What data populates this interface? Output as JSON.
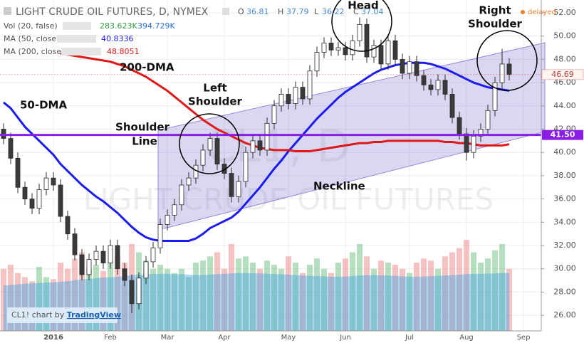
{
  "chart_data": {
    "type": "candlestick",
    "title": "LIGHT CRUDE OIL FUTURES, D, NYMEX",
    "status": "delayed",
    "readout": [
      {
        "label": "O",
        "value": 36.81
      },
      {
        "label": "H",
        "value": 37.79
      },
      {
        "label": "L",
        "value": 36.22
      },
      {
        "label": "C",
        "value": 37.04
      }
    ],
    "indicators": [
      {
        "name": "Vol (20, false)",
        "values": [
          283623,
          394729
        ],
        "value_labels": [
          "283.623K",
          "394.729K"
        ],
        "colors": [
          "#2e9e3e",
          "#2a6fd6"
        ]
      },
      {
        "name": "MA (50, close)",
        "value": 40.8336,
        "color": "#1c1cf0"
      },
      {
        "name": "MA (200, close)",
        "value": 48.8051,
        "color": "#e01818"
      }
    ],
    "watermark": [
      "CL1, D",
      "LIGHT CRUDE OIL FUTURES"
    ],
    "source": "CL1! chart by ",
    "source_link": "TradingView",
    "annotations": [
      {
        "lines": [
          "Head"
        ]
      },
      {
        "lines": [
          "Right",
          "Shoulder"
        ]
      },
      {
        "lines": [
          "Left",
          "Shoulder"
        ]
      },
      {
        "lines": [
          "200-DMA"
        ]
      },
      {
        "lines": [
          "50-DMA"
        ]
      },
      {
        "lines": [
          "Shoulder",
          "Line"
        ]
      },
      {
        "lines": [
          "Neckline"
        ]
      }
    ],
    "categories": [
      null,
      null,
      null,
      null,
      null,
      null,
      null,
      "2016",
      null,
      null,
      null,
      null,
      null,
      null,
      null,
      "Feb",
      null,
      null,
      null,
      null,
      null,
      null,
      null,
      "Mar",
      null,
      null,
      null,
      null,
      null,
      null,
      null,
      "Apr",
      null,
      null,
      null,
      null,
      null,
      null,
      null,
      null,
      "May",
      null,
      null,
      null,
      null,
      null,
      null,
      null,
      "Jun",
      null,
      null,
      null,
      null,
      null,
      null,
      null,
      null,
      "Jul",
      null,
      null,
      null,
      null,
      null,
      null,
      null,
      "Aug",
      null,
      null,
      null,
      null,
      null,
      null,
      null,
      "Sep"
    ],
    "ohlc": {
      "up_color": "#ffffff",
      "down_color": "#3a3a3a",
      "stroke": "#2b2b2b",
      "open": [
        42.0,
        41.2,
        39.5,
        37.0,
        36.0,
        35.2,
        36.8,
        37.8,
        37.2,
        34.5,
        33.0,
        31.2,
        29.5,
        30.8,
        31.5,
        30.5,
        32.0,
        30.0,
        29.0,
        27.0,
        29.2,
        30.6,
        31.8,
        33.8,
        34.6,
        35.5,
        37.2,
        37.8,
        38.9,
        40.2,
        41.2,
        39.0,
        38.2,
        36.2,
        37.5,
        40.0,
        41.0,
        40.2,
        42.5,
        44.0,
        45.0,
        44.2,
        45.6,
        44.6,
        47.0,
        48.6,
        49.4,
        48.8,
        49.0,
        48.4,
        49.6,
        51.0,
        48.2,
        49.2,
        47.6,
        49.6,
        48.0,
        46.8,
        47.8,
        46.6,
        45.8,
        45.4,
        46.2,
        45.0,
        43.0,
        41.6,
        40.0,
        41.4,
        42.0,
        43.6,
        46.0,
        47.6,
        null,
        null
      ],
      "high": [
        42.5,
        41.7,
        40.0,
        37.5,
        36.5,
        37.3,
        38.3,
        38.3,
        37.7,
        35.0,
        33.5,
        31.7,
        31.3,
        32.0,
        32.0,
        32.5,
        32.5,
        30.5,
        29.5,
        29.7,
        31.1,
        32.3,
        34.3,
        35.1,
        36.0,
        37.7,
        38.3,
        39.4,
        40.7,
        41.7,
        41.7,
        39.5,
        38.7,
        38.0,
        40.5,
        41.5,
        41.5,
        43.0,
        44.5,
        45.5,
        45.5,
        46.1,
        46.1,
        47.5,
        49.1,
        49.9,
        49.9,
        49.5,
        49.5,
        50.1,
        51.6,
        51.5,
        49.7,
        49.7,
        50.1,
        50.1,
        48.5,
        48.3,
        48.3,
        47.1,
        46.3,
        46.7,
        46.7,
        45.5,
        43.5,
        42.1,
        41.9,
        42.5,
        44.1,
        46.5,
        48.9,
        48.1,
        null,
        null
      ],
      "low": [
        40.7,
        39.0,
        36.5,
        35.5,
        34.7,
        34.7,
        36.3,
        36.7,
        34.0,
        32.5,
        30.7,
        29.0,
        29.0,
        30.3,
        30.0,
        30.0,
        29.5,
        28.5,
        26.2,
        26.5,
        28.7,
        30.1,
        31.3,
        33.3,
        34.1,
        35.0,
        36.7,
        37.3,
        38.4,
        39.7,
        38.5,
        37.7,
        35.7,
        35.7,
        37.0,
        39.5,
        39.7,
        39.7,
        42.0,
        43.5,
        43.7,
        43.7,
        44.1,
        44.1,
        46.5,
        48.1,
        48.3,
        48.3,
        47.9,
        47.9,
        49.1,
        47.7,
        47.7,
        47.1,
        47.1,
        47.5,
        46.3,
        46.3,
        46.1,
        45.3,
        44.9,
        44.9,
        44.5,
        42.5,
        41.1,
        39.3,
        39.5,
        40.9,
        41.5,
        43.1,
        45.5,
        46.2,
        null,
        null
      ],
      "close": [
        41.2,
        39.5,
        37.0,
        36.0,
        35.2,
        36.8,
        37.8,
        37.2,
        34.5,
        33.0,
        31.2,
        29.5,
        30.8,
        31.5,
        30.5,
        32.0,
        30.0,
        29.0,
        27.0,
        29.2,
        30.6,
        31.8,
        33.8,
        34.6,
        35.5,
        37.2,
        37.8,
        38.9,
        40.2,
        41.2,
        39.0,
        38.2,
        36.2,
        37.5,
        40.0,
        41.0,
        40.2,
        42.5,
        44.0,
        45.0,
        44.2,
        45.6,
        44.6,
        47.0,
        48.6,
        49.4,
        48.8,
        49.0,
        48.4,
        49.6,
        51.0,
        48.2,
        49.2,
        47.6,
        49.6,
        48.0,
        46.8,
        47.8,
        46.6,
        45.8,
        45.4,
        46.2,
        45.0,
        43.0,
        41.6,
        40.0,
        41.4,
        42.0,
        43.6,
        46.0,
        47.6,
        46.7,
        null,
        null
      ]
    },
    "ma": [
      {
        "name": "MA (50, close)",
        "color": "#1c1cf0",
        "values": [
          44.3,
          43.8,
          43.0,
          42.2,
          41.6,
          41.0,
          40.4,
          39.8,
          39.0,
          38.4,
          37.8,
          37.2,
          36.7,
          36.2,
          35.8,
          35.3,
          34.8,
          34.2,
          33.6,
          33.1,
          32.7,
          32.5,
          32.4,
          32.4,
          32.4,
          32.4,
          32.4,
          32.6,
          33.0,
          33.5,
          33.8,
          34.1,
          34.4,
          34.9,
          35.6,
          36.3,
          37.0,
          37.8,
          38.6,
          39.3,
          40.1,
          40.8,
          41.5,
          42.2,
          42.9,
          43.5,
          44.1,
          44.7,
          45.2,
          45.6,
          46.0,
          46.4,
          46.8,
          47.1,
          47.3,
          47.5,
          47.6,
          47.7,
          47.7,
          47.7,
          47.6,
          47.4,
          47.2,
          46.9,
          46.6,
          46.3,
          46.0,
          45.8,
          45.6,
          45.5,
          45.4,
          45.3,
          null,
          null
        ]
      },
      {
        "name": "MA (200, close)",
        "color": "#e01818",
        "values": [
          null,
          null,
          null,
          null,
          null,
          null,
          null,
          null,
          48.5,
          48.4,
          48.3,
          48.2,
          48.1,
          48.0,
          47.9,
          47.8,
          47.6,
          47.4,
          47.1,
          46.8,
          46.5,
          46.1,
          45.7,
          45.3,
          44.8,
          44.3,
          43.8,
          43.3,
          42.8,
          42.4,
          42.0,
          41.7,
          41.4,
          41.1,
          40.8,
          40.6,
          40.4,
          40.3,
          40.2,
          40.2,
          40.2,
          40.1,
          40.1,
          40.1,
          40.2,
          40.3,
          40.4,
          40.5,
          40.6,
          40.7,
          40.8,
          40.8,
          40.9,
          40.9,
          41.0,
          41.0,
          41.0,
          41.0,
          41.0,
          41.0,
          41.0,
          41.0,
          40.9,
          40.9,
          40.8,
          40.8,
          40.7,
          40.6,
          40.6,
          40.6,
          40.6,
          40.7,
          null,
          null
        ]
      }
    ],
    "volume": {
      "axis": "y2",
      "up_color": "rgba(90,185,110,0.45)",
      "down_color": "rgba(235,120,120,0.45)",
      "values": [
        300,
        320,
        280,
        260,
        240,
        310,
        260,
        250,
        330,
        300,
        350,
        380,
        300,
        320,
        290,
        340,
        360,
        330,
        420,
        380,
        340,
        300,
        320,
        300,
        280,
        300,
        260,
        330,
        340,
        360,
        380,
        300,
        420,
        350,
        360,
        330,
        300,
        340,
        320,
        300,
        360,
        330,
        280,
        320,
        350,
        300,
        280,
        330,
        350,
        380,
        420,
        360,
        300,
        340,
        330,
        320,
        300,
        280,
        330,
        350,
        340,
        300,
        360,
        380,
        400,
        440,
        380,
        330,
        350,
        390,
        420,
        300,
        null,
        null
      ]
    },
    "volume_ma": {
      "axis": "y2",
      "color": "rgba(70,165,225,0.45)",
      "values": [
        220,
        222,
        225,
        228,
        230,
        232,
        234,
        235,
        238,
        240,
        245,
        250,
        252,
        255,
        258,
        260,
        262,
        265,
        270,
        272,
        274,
        275,
        276,
        276,
        275,
        274,
        272,
        270,
        270,
        272,
        275,
        276,
        278,
        280,
        280,
        279,
        278,
        276,
        275,
        274,
        272,
        270,
        268,
        266,
        265,
        264,
        262,
        262,
        263,
        265,
        268,
        270,
        270,
        269,
        268,
        266,
        264,
        262,
        262,
        263,
        265,
        266,
        268,
        270,
        272,
        275,
        276,
        276,
        277,
        278,
        280,
        280,
        null,
        null
      ]
    },
    "y2lim": [
      0,
      1600
    ],
    "ylim": [
      24.66,
      53.1
    ],
    "yticks": [
      {
        "value": 26,
        "label": "26.00"
      },
      {
        "value": 28,
        "label": "28.00"
      },
      {
        "value": 30,
        "label": "30.00"
      },
      {
        "value": 32,
        "label": "32.00"
      },
      {
        "value": 34,
        "label": "34.00"
      },
      {
        "value": 36,
        "label": "36.00"
      },
      {
        "value": 38,
        "label": "38.00"
      },
      {
        "value": 40,
        "label": "40.00"
      },
      {
        "value": 42,
        "label": "42.00"
      },
      {
        "value": 44,
        "label": "44.00"
      },
      {
        "value": 46,
        "label": "46.00"
      },
      {
        "value": 48,
        "label": "48.00"
      },
      {
        "value": 50,
        "label": "50.00"
      },
      {
        "value": 52,
        "label": "52.00"
      }
    ],
    "hline": {
      "value": 41.5,
      "label": "41.50",
      "color": "#8a1ee6"
    },
    "last_price": {
      "value": 46.69,
      "label": "46.69",
      "color": "#e05050"
    },
    "grid": true
  }
}
